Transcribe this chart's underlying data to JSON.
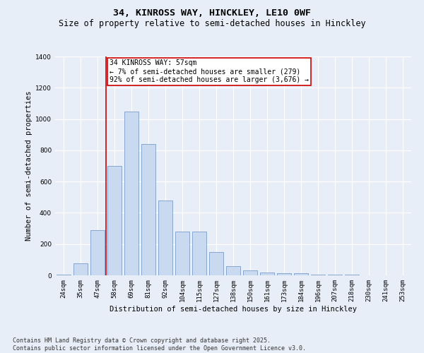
{
  "title_line1": "34, KINROSS WAY, HINCKLEY, LE10 0WF",
  "title_line2": "Size of property relative to semi-detached houses in Hinckley",
  "xlabel": "Distribution of semi-detached houses by size in Hinckley",
  "ylabel": "Number of semi-detached properties",
  "categories": [
    "24sqm",
    "35sqm",
    "47sqm",
    "58sqm",
    "69sqm",
    "81sqm",
    "92sqm",
    "104sqm",
    "115sqm",
    "127sqm",
    "138sqm",
    "150sqm",
    "161sqm",
    "173sqm",
    "184sqm",
    "196sqm",
    "207sqm",
    "218sqm",
    "230sqm",
    "241sqm",
    "253sqm"
  ],
  "values": [
    5,
    75,
    290,
    700,
    1050,
    840,
    480,
    280,
    280,
    150,
    60,
    30,
    20,
    15,
    12,
    5,
    5,
    3,
    2,
    2,
    1
  ],
  "bar_color": "#c9d9f0",
  "bar_edge_color": "#7a9cc8",
  "vline_color": "#cc0000",
  "annotation_text": "34 KINROSS WAY: 57sqm\n← 7% of semi-detached houses are smaller (279)\n92% of semi-detached houses are larger (3,676) →",
  "annotation_box_color": "#ffffff",
  "annotation_box_edge": "#cc0000",
  "ylim": [
    0,
    1400
  ],
  "yticks": [
    0,
    200,
    400,
    600,
    800,
    1000,
    1200,
    1400
  ],
  "background_color": "#e8eef8",
  "plot_bg_color": "#e8eef8",
  "footer_text": "Contains HM Land Registry data © Crown copyright and database right 2025.\nContains public sector information licensed under the Open Government Licence v3.0.",
  "title_fontsize": 9.5,
  "subtitle_fontsize": 8.5,
  "axis_label_fontsize": 7.5,
  "tick_fontsize": 6.5,
  "annotation_fontsize": 7,
  "footer_fontsize": 6
}
